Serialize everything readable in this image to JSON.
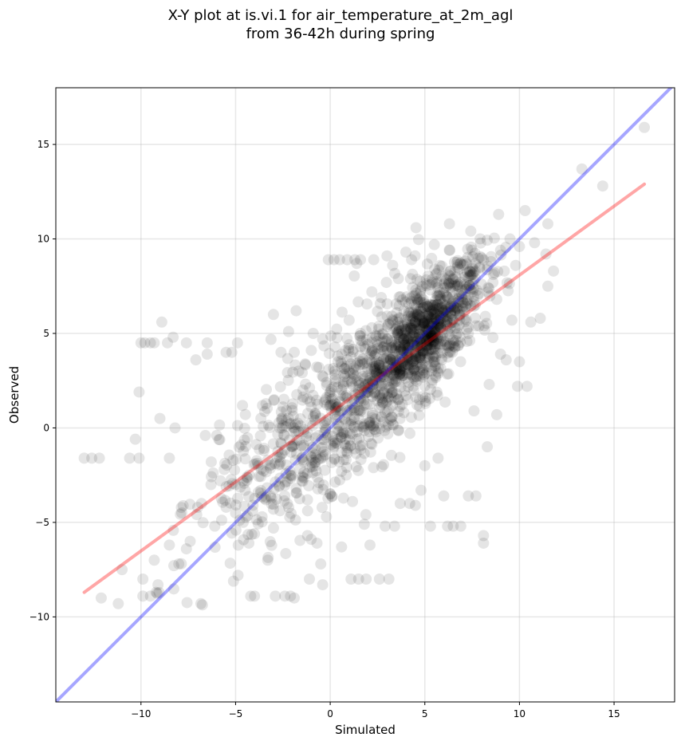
{
  "title_line1": "X-Y plot at is.vi.1 for air_temperature_at_2m_agl",
  "title_line2": "from 36-42h during spring",
  "chart_data": {
    "type": "scatter",
    "title": "X-Y plot at is.vi.1 for air_temperature_at_2m_agl from 36-42h during spring",
    "xlabel": "Simulated",
    "ylabel": "Observed",
    "xlim": [
      -14.5,
      18.2
    ],
    "ylim": [
      -14.5,
      18.0
    ],
    "xticks": [
      -10,
      -5,
      0,
      5,
      10,
      15
    ],
    "yticks": [
      -10,
      -5,
      0,
      5,
      10,
      15
    ],
    "xtick_labels": [
      "−10",
      "−5",
      "0",
      "5",
      "10",
      "15"
    ],
    "ytick_labels": [
      "−10",
      "−5",
      "0",
      "5",
      "10",
      "15"
    ],
    "grid": true,
    "point_color": "#000000",
    "point_alpha": 0.1,
    "series": [
      {
        "kind": "points",
        "points": [
          [
            -13.0,
            -1.6
          ],
          [
            -12.6,
            -1.6
          ],
          [
            -12.2,
            -1.6
          ],
          [
            -12.1,
            -9.0
          ],
          [
            -11.2,
            -9.3
          ],
          [
            -11.0,
            -7.5
          ],
          [
            -10.3,
            -0.6
          ],
          [
            -10.1,
            1.9
          ],
          [
            -10.1,
            -1.6
          ],
          [
            -10.6,
            -1.6
          ],
          [
            -10.0,
            4.5
          ],
          [
            -9.8,
            4.5
          ],
          [
            -9.5,
            4.5
          ],
          [
            -9.3,
            4.5
          ],
          [
            -9.9,
            -8.0
          ],
          [
            -9.9,
            -8.9
          ],
          [
            -9.5,
            -8.9
          ],
          [
            -9.2,
            -8.7
          ],
          [
            -9.1,
            -8.3
          ],
          [
            -9.3,
            -7.0
          ],
          [
            -9.0,
            0.5
          ],
          [
            -8.9,
            5.6
          ],
          [
            -8.6,
            4.5
          ],
          [
            -8.3,
            4.8
          ],
          [
            -8.2,
            0.0
          ],
          [
            -8.5,
            -1.6
          ],
          [
            -8.5,
            -6.2
          ],
          [
            -8.0,
            -7.2
          ],
          [
            -7.6,
            -6.4
          ],
          [
            -7.6,
            4.5
          ],
          [
            -7.4,
            -6.0
          ],
          [
            -7.1,
            3.6
          ],
          [
            -7.0,
            -4.2
          ],
          [
            -6.8,
            -4.0
          ],
          [
            -6.6,
            -0.4
          ],
          [
            -6.5,
            3.9
          ],
          [
            -6.5,
            4.5
          ],
          [
            -6.3,
            -3.0
          ],
          [
            -6.1,
            -5.2
          ],
          [
            -6.0,
            -0.4
          ],
          [
            -5.8,
            -2.8
          ],
          [
            -5.5,
            4.0
          ],
          [
            -5.5,
            -4.2
          ],
          [
            -5.2,
            4.0
          ],
          [
            -5.0,
            -4.5
          ],
          [
            -4.9,
            4.5
          ],
          [
            -4.7,
            -0.9
          ],
          [
            -4.5,
            -3.3
          ],
          [
            -4.3,
            -6.1
          ],
          [
            -4.2,
            -8.9
          ],
          [
            -4.0,
            -8.9
          ],
          [
            -3.8,
            -2.0
          ],
          [
            -3.5,
            -1.2
          ],
          [
            -3.3,
            -7.0
          ],
          [
            -3.0,
            6.0
          ],
          [
            -3.0,
            -4.3
          ],
          [
            -2.9,
            -8.9
          ],
          [
            -2.6,
            4.0
          ],
          [
            -2.4,
            -8.9
          ],
          [
            -2.2,
            5.1
          ],
          [
            -2.1,
            -8.9
          ],
          [
            -1.9,
            -9.0
          ],
          [
            -1.9,
            4.0
          ],
          [
            -1.8,
            6.2
          ],
          [
            -1.5,
            -2.8
          ],
          [
            -1.2,
            -3.8
          ],
          [
            -1.2,
            -5.7
          ],
          [
            -1.1,
            -8.0
          ],
          [
            -1.0,
            4.1
          ],
          [
            -0.9,
            5.0
          ],
          [
            -0.7,
            -6.1
          ],
          [
            -0.5,
            -7.2
          ],
          [
            -0.4,
            -8.3
          ],
          [
            -0.4,
            4.7
          ],
          [
            -0.2,
            -4.7
          ],
          [
            -0.1,
            8.9
          ],
          [
            0.2,
            8.9
          ],
          [
            0.5,
            8.9
          ],
          [
            0.6,
            -6.3
          ],
          [
            0.8,
            4.1
          ],
          [
            0.9,
            8.9
          ],
          [
            1.0,
            5.7
          ],
          [
            1.1,
            -8.0
          ],
          [
            1.3,
            8.9
          ],
          [
            1.5,
            -8.0
          ],
          [
            1.6,
            8.9
          ],
          [
            1.7,
            4.6
          ],
          [
            1.8,
            -5.1
          ],
          [
            1.9,
            -8.0
          ],
          [
            2.1,
            -6.2
          ],
          [
            2.2,
            7.2
          ],
          [
            2.3,
            8.9
          ],
          [
            2.6,
            -8.0
          ],
          [
            2.7,
            6.9
          ],
          [
            2.9,
            -5.2
          ],
          [
            3.0,
            9.1
          ],
          [
            3.1,
            -8.0
          ],
          [
            3.3,
            8.6
          ],
          [
            3.4,
            -5.2
          ],
          [
            3.6,
            7.9
          ],
          [
            3.7,
            -4.0
          ],
          [
            4.0,
            9.3
          ],
          [
            4.2,
            -4.0
          ],
          [
            4.3,
            8.9
          ],
          [
            4.5,
            -4.1
          ],
          [
            4.8,
            -3.3
          ],
          [
            5.0,
            -2.0
          ],
          [
            5.3,
            -5.2
          ],
          [
            5.5,
            9.7
          ],
          [
            5.7,
            -1.6
          ],
          [
            6.0,
            -3.6
          ],
          [
            6.2,
            -5.2
          ],
          [
            6.3,
            10.8
          ],
          [
            6.5,
            -5.2
          ],
          [
            6.9,
            -5.2
          ],
          [
            7.3,
            -3.6
          ],
          [
            7.7,
            -3.6
          ],
          [
            7.6,
            0.9
          ],
          [
            8.1,
            -5.7
          ],
          [
            8.1,
            -6.1
          ],
          [
            8.3,
            -1.0
          ],
          [
            8.4,
            2.3
          ],
          [
            8.8,
            0.7
          ],
          [
            8.9,
            11.3
          ],
          [
            9.0,
            3.9
          ],
          [
            9.3,
            3.6
          ],
          [
            9.6,
            5.7
          ],
          [
            9.9,
            2.2
          ],
          [
            10.0,
            3.5
          ],
          [
            10.3,
            11.5
          ],
          [
            10.4,
            2.2
          ],
          [
            10.6,
            5.6
          ],
          [
            10.8,
            9.8
          ],
          [
            11.1,
            5.8
          ],
          [
            11.4,
            9.2
          ],
          [
            11.5,
            7.5
          ],
          [
            11.5,
            10.8
          ],
          [
            11.8,
            8.3
          ],
          [
            13.3,
            13.7
          ],
          [
            14.4,
            12.8
          ],
          [
            16.6,
            15.9
          ],
          [
            7.0,
            6.8
          ],
          [
            6.5,
            7.5
          ],
          [
            6.0,
            6.2
          ],
          [
            5.5,
            5.8
          ],
          [
            4.8,
            5.2
          ],
          [
            4.2,
            4.9
          ],
          [
            3.8,
            4.0
          ],
          [
            3.2,
            3.6
          ],
          [
            2.6,
            2.8
          ],
          [
            2.0,
            2.1
          ],
          [
            1.5,
            1.4
          ],
          [
            0.9,
            0.8
          ],
          [
            0.4,
            0.2
          ],
          [
            -0.2,
            -0.5
          ],
          [
            -0.8,
            -1.1
          ],
          [
            -1.4,
            -1.8
          ],
          [
            -2.1,
            -2.5
          ],
          [
            -2.7,
            -3.1
          ],
          [
            -3.4,
            -3.8
          ],
          [
            -4.1,
            -4.4
          ],
          [
            7.5,
            8.1
          ],
          [
            6.8,
            8.4
          ],
          [
            6.1,
            7.9
          ],
          [
            5.3,
            7.3
          ],
          [
            4.6,
            6.8
          ],
          [
            3.9,
            6.2
          ],
          [
            3.1,
            5.5
          ],
          [
            2.4,
            4.9
          ],
          [
            1.6,
            4.3
          ],
          [
            0.9,
            3.6
          ],
          [
            7.3,
            5.0
          ],
          [
            6.6,
            4.3
          ],
          [
            5.9,
            3.6
          ],
          [
            5.1,
            2.9
          ],
          [
            4.4,
            2.2
          ],
          [
            3.6,
            1.5
          ],
          [
            2.9,
            0.8
          ],
          [
            2.1,
            0.1
          ],
          [
            1.4,
            -0.6
          ],
          [
            0.6,
            -1.3
          ],
          [
            8.0,
            7.6
          ],
          [
            8.5,
            8.8
          ],
          [
            9.0,
            9.4
          ],
          [
            9.5,
            10.0
          ],
          [
            10.0,
            9.6
          ],
          [
            8.8,
            6.8
          ],
          [
            8.2,
            5.9
          ],
          [
            7.7,
            5.4
          ],
          [
            9.2,
            8.3
          ],
          [
            9.8,
            8.6
          ],
          [
            5.0,
            4.7
          ],
          [
            5.2,
            5.1
          ],
          [
            4.9,
            5.5
          ],
          [
            5.4,
            6.0
          ],
          [
            5.8,
            6.4
          ],
          [
            4.5,
            5.6
          ],
          [
            4.1,
            5.3
          ],
          [
            3.6,
            4.4
          ],
          [
            5.6,
            5.3
          ],
          [
            6.2,
            5.7
          ],
          [
            -5.6,
            -2.2
          ],
          [
            -5.0,
            -3.0
          ],
          [
            -4.4,
            -2.6
          ],
          [
            -3.8,
            -3.4
          ],
          [
            -3.2,
            -2.0
          ],
          [
            -2.6,
            -1.4
          ],
          [
            -2.0,
            -1.0
          ],
          [
            -1.4,
            -0.2
          ],
          [
            -0.8,
            0.4
          ],
          [
            -0.2,
            1.6
          ],
          [
            -4.6,
            -5.0
          ],
          [
            -4.0,
            -5.6
          ],
          [
            -3.6,
            -4.7
          ],
          [
            -3.0,
            -5.3
          ],
          [
            -2.4,
            -3.6
          ],
          [
            -1.8,
            -3.2
          ],
          [
            -1.2,
            -2.4
          ],
          [
            -0.6,
            -2.9
          ],
          [
            0.0,
            -3.5
          ],
          [
            0.6,
            -2.3
          ],
          [
            1.2,
            2.6
          ],
          [
            1.8,
            3.4
          ],
          [
            2.4,
            3.9
          ],
          [
            3.0,
            4.7
          ],
          [
            2.2,
            5.3
          ],
          [
            1.6,
            5.0
          ],
          [
            1.0,
            4.4
          ],
          [
            0.4,
            3.8
          ],
          [
            -0.2,
            2.4
          ],
          [
            -0.6,
            3.2
          ]
        ],
        "generated_cloud": true
      },
      {
        "kind": "line",
        "color": "#ff0000",
        "alpha": 0.35,
        "x": [
          -13.0,
          16.6
        ],
        "y": [
          -8.7,
          12.9
        ]
      },
      {
        "kind": "line",
        "color": "#0000ff",
        "alpha": 0.35,
        "x": [
          -14.5,
          18.2
        ],
        "y": [
          -14.5,
          18.2
        ]
      }
    ]
  }
}
